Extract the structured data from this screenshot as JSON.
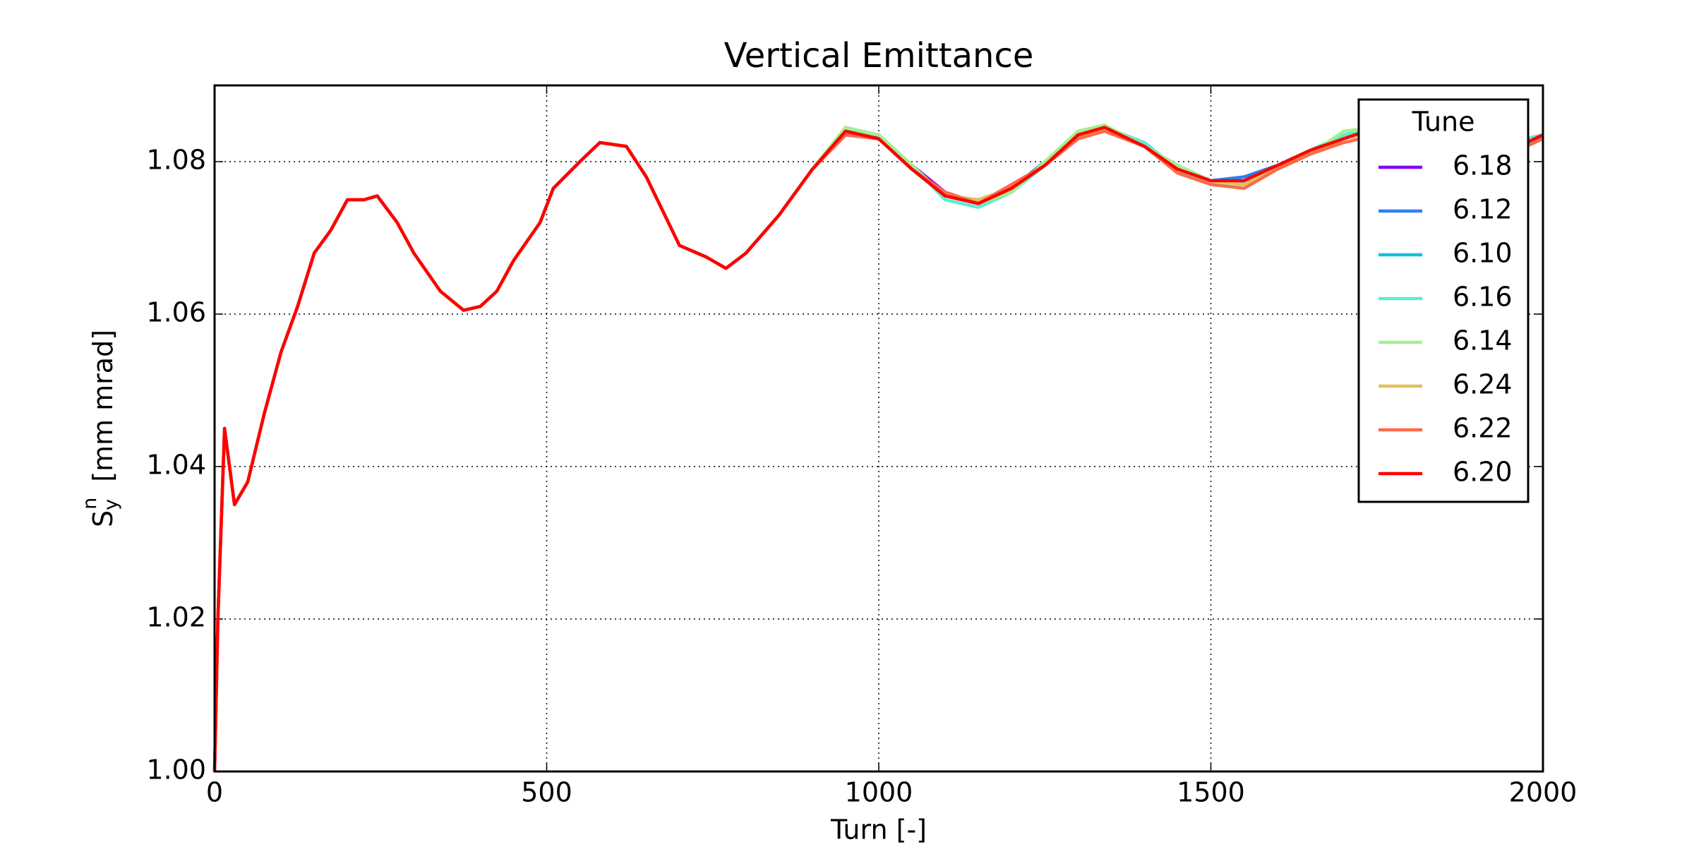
{
  "chart_data": {
    "type": "line",
    "title": "Vertical Emittance",
    "xlabel": "Turn [-]",
    "ylabel": {
      "base": "S",
      "sub": "y",
      "sup": "n",
      "unit": "[mm mrad]"
    },
    "xlim": [
      0,
      2000
    ],
    "xticks": [
      0,
      500,
      1000,
      1500,
      2000
    ],
    "ylim": [
      1.0,
      1.09
    ],
    "yticks": [
      {
        "value": 1.0,
        "label": "1.00"
      },
      1.02,
      1.04,
      1.06,
      1.08
    ],
    "grid": true,
    "legend_title": "Tune",
    "legend_loc": "upper right",
    "x": [
      0,
      5,
      15,
      30,
      50,
      75,
      100,
      125,
      150,
      175,
      200,
      225,
      245,
      275,
      300,
      340,
      375,
      400,
      425,
      450,
      490,
      510,
      550,
      580,
      620,
      650,
      700,
      740,
      770,
      800,
      850,
      900,
      950,
      1000,
      1050,
      1100,
      1150,
      1200,
      1250,
      1300,
      1340,
      1400,
      1450,
      1500,
      1550,
      1600,
      1650,
      1700,
      1750,
      1800,
      1900,
      1975,
      2000
    ],
    "series": [
      {
        "name": "6.18",
        "color": "#8000ff",
        "values": [
          1.0,
          1.02,
          1.045,
          1.035,
          1.038,
          1.047,
          1.055,
          1.061,
          1.068,
          1.071,
          1.075,
          1.075,
          1.0755,
          1.072,
          1.068,
          1.063,
          1.0605,
          1.061,
          1.063,
          1.067,
          1.072,
          1.0765,
          1.08,
          1.0825,
          1.082,
          1.078,
          1.069,
          1.0675,
          1.066,
          1.068,
          1.073,
          1.079,
          1.0835,
          1.0835,
          1.0795,
          1.076,
          1.0745,
          1.077,
          1.0795,
          1.083,
          1.0845,
          1.0825,
          1.079,
          1.077,
          1.0775,
          1.0795,
          1.081,
          1.0835,
          1.0845,
          1.085,
          1.0855,
          1.083,
          1.0835
        ]
      },
      {
        "name": "6.12",
        "color": "#2c7ef7",
        "values": [
          1.0,
          1.02,
          1.045,
          1.035,
          1.038,
          1.047,
          1.055,
          1.061,
          1.068,
          1.071,
          1.075,
          1.075,
          1.0755,
          1.072,
          1.068,
          1.063,
          1.0605,
          1.061,
          1.063,
          1.067,
          1.072,
          1.0765,
          1.08,
          1.0825,
          1.082,
          1.078,
          1.069,
          1.0675,
          1.066,
          1.068,
          1.073,
          1.079,
          1.084,
          1.0835,
          1.0795,
          1.0755,
          1.075,
          1.0765,
          1.08,
          1.0835,
          1.0845,
          1.082,
          1.0795,
          1.0775,
          1.078,
          1.0795,
          1.0815,
          1.083,
          1.0845,
          1.085,
          1.085,
          1.0825,
          1.0835
        ]
      },
      {
        "name": "6.10",
        "color": "#12c0e0",
        "values": [
          1.0,
          1.02,
          1.045,
          1.035,
          1.038,
          1.047,
          1.055,
          1.061,
          1.068,
          1.071,
          1.075,
          1.075,
          1.0755,
          1.072,
          1.068,
          1.063,
          1.0605,
          1.061,
          1.063,
          1.067,
          1.072,
          1.0765,
          1.08,
          1.0825,
          1.082,
          1.078,
          1.069,
          1.0675,
          1.066,
          1.068,
          1.073,
          1.079,
          1.0835,
          1.083,
          1.079,
          1.0755,
          1.0745,
          1.0765,
          1.0795,
          1.0835,
          1.084,
          1.082,
          1.079,
          1.0775,
          1.0775,
          1.079,
          1.081,
          1.083,
          1.084,
          1.085,
          1.085,
          1.0825,
          1.083
        ]
      },
      {
        "name": "6.16",
        "color": "#5aeed0",
        "values": [
          1.0,
          1.02,
          1.045,
          1.035,
          1.038,
          1.047,
          1.055,
          1.061,
          1.068,
          1.071,
          1.075,
          1.075,
          1.0755,
          1.072,
          1.068,
          1.063,
          1.0605,
          1.061,
          1.063,
          1.067,
          1.072,
          1.0765,
          1.08,
          1.0825,
          1.082,
          1.078,
          1.069,
          1.0675,
          1.066,
          1.068,
          1.073,
          1.079,
          1.084,
          1.0835,
          1.0795,
          1.075,
          1.074,
          1.076,
          1.0795,
          1.084,
          1.0845,
          1.0825,
          1.079,
          1.077,
          1.077,
          1.0795,
          1.0815,
          1.0835,
          1.0845,
          1.0855,
          1.085,
          1.083,
          1.0835
        ]
      },
      {
        "name": "6.14",
        "color": "#a2f08e",
        "values": [
          1.0,
          1.02,
          1.045,
          1.035,
          1.038,
          1.047,
          1.055,
          1.061,
          1.068,
          1.071,
          1.075,
          1.075,
          1.0755,
          1.072,
          1.068,
          1.063,
          1.0605,
          1.061,
          1.063,
          1.067,
          1.072,
          1.0765,
          1.08,
          1.0825,
          1.082,
          1.078,
          1.069,
          1.0675,
          1.066,
          1.068,
          1.073,
          1.079,
          1.0845,
          1.0835,
          1.0795,
          1.0755,
          1.0745,
          1.076,
          1.08,
          1.084,
          1.0848,
          1.082,
          1.0795,
          1.0775,
          1.0765,
          1.079,
          1.081,
          1.084,
          1.0845,
          1.085,
          1.085,
          1.0825,
          1.0835
        ]
      },
      {
        "name": "6.24",
        "color": "#e0c060",
        "values": [
          1.0,
          1.02,
          1.045,
          1.035,
          1.038,
          1.047,
          1.055,
          1.061,
          1.068,
          1.071,
          1.075,
          1.075,
          1.0755,
          1.072,
          1.068,
          1.063,
          1.0605,
          1.061,
          1.063,
          1.067,
          1.072,
          1.0765,
          1.08,
          1.0825,
          1.082,
          1.078,
          1.069,
          1.0675,
          1.066,
          1.068,
          1.073,
          1.079,
          1.084,
          1.083,
          1.079,
          1.0755,
          1.075,
          1.0765,
          1.0795,
          1.083,
          1.0845,
          1.082,
          1.079,
          1.0775,
          1.077,
          1.0795,
          1.081,
          1.083,
          1.084,
          1.085,
          1.085,
          1.0825,
          1.0835
        ]
      },
      {
        "name": "6.22",
        "color": "#ff6a48",
        "values": [
          1.0,
          1.02,
          1.045,
          1.035,
          1.038,
          1.047,
          1.055,
          1.061,
          1.068,
          1.071,
          1.075,
          1.075,
          1.0755,
          1.072,
          1.068,
          1.063,
          1.0605,
          1.061,
          1.063,
          1.067,
          1.072,
          1.0765,
          1.08,
          1.0825,
          1.082,
          1.078,
          1.069,
          1.0675,
          1.066,
          1.068,
          1.073,
          1.079,
          1.0835,
          1.083,
          1.079,
          1.076,
          1.0745,
          1.077,
          1.0795,
          1.083,
          1.084,
          1.082,
          1.0785,
          1.077,
          1.0765,
          1.079,
          1.081,
          1.0825,
          1.0835,
          1.085,
          1.085,
          1.082,
          1.083
        ]
      },
      {
        "name": "6.20",
        "color": "#ff0000",
        "values": [
          1.0,
          1.02,
          1.045,
          1.035,
          1.038,
          1.047,
          1.055,
          1.061,
          1.068,
          1.071,
          1.075,
          1.075,
          1.0755,
          1.072,
          1.068,
          1.063,
          1.0605,
          1.061,
          1.063,
          1.067,
          1.072,
          1.0765,
          1.08,
          1.0825,
          1.082,
          1.078,
          1.069,
          1.0675,
          1.066,
          1.068,
          1.073,
          1.079,
          1.084,
          1.083,
          1.079,
          1.0755,
          1.0745,
          1.0765,
          1.0795,
          1.0835,
          1.0845,
          1.082,
          1.079,
          1.0775,
          1.0775,
          1.0795,
          1.0815,
          1.083,
          1.0845,
          1.085,
          1.085,
          1.0825,
          1.0835
        ]
      }
    ]
  }
}
